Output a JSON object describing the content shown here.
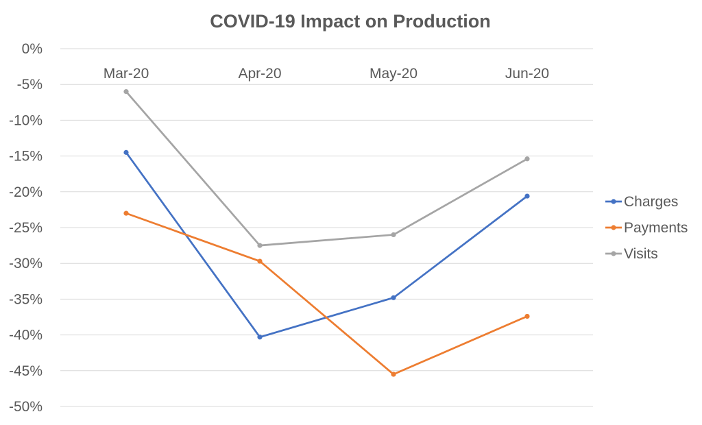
{
  "chart_data": {
    "type": "line",
    "title": "COVID-19 Impact on Production",
    "categories": [
      "Mar-20",
      "Apr-20",
      "May-20",
      "Jun-20"
    ],
    "xlabel": "",
    "ylabel": "",
    "ylim": [
      -50,
      0
    ],
    "y_ticks": [
      0,
      -5,
      -10,
      -15,
      -20,
      -25,
      -30,
      -35,
      -40,
      -45,
      -50
    ],
    "y_tick_labels": [
      "0%",
      "-5%",
      "-10%",
      "-15%",
      "-20%",
      "-25%",
      "-30%",
      "-35%",
      "-40%",
      "-45%",
      "-50%"
    ],
    "x_axis_position": "top",
    "grid": true,
    "legend_position": "right",
    "series": [
      {
        "name": "Charges",
        "color": "#4472c4",
        "values": [
          -14.5,
          -40.3,
          -34.8,
          -20.6
        ]
      },
      {
        "name": "Payments",
        "color": "#ed7d31",
        "values": [
          -23.0,
          -29.7,
          -45.5,
          -37.4
        ]
      },
      {
        "name": "Visits",
        "color": "#a5a5a5",
        "values": [
          -6.0,
          -27.5,
          -26.0,
          -15.4
        ]
      }
    ]
  }
}
